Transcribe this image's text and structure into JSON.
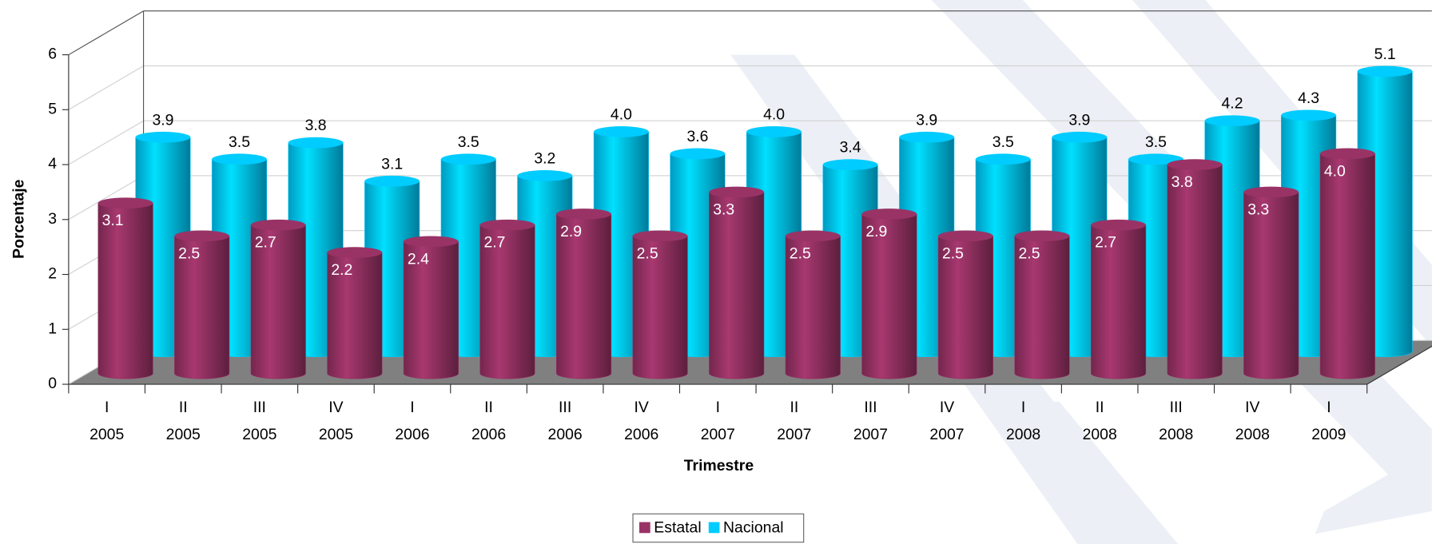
{
  "chart_data": {
    "type": "bar3d",
    "x_label": "Trimestre",
    "y_label": "Porcentaje",
    "categories": [
      [
        "I",
        "2005"
      ],
      [
        "II",
        "2005"
      ],
      [
        "III",
        "2005"
      ],
      [
        "IV",
        "2005"
      ],
      [
        "I",
        "2006"
      ],
      [
        "II",
        "2006"
      ],
      [
        "III",
        "2006"
      ],
      [
        "IV",
        "2006"
      ],
      [
        "I",
        "2007"
      ],
      [
        "II",
        "2007"
      ],
      [
        "III",
        "2007"
      ],
      [
        "IV",
        "2007"
      ],
      [
        "I",
        "2008"
      ],
      [
        "II",
        "2008"
      ],
      [
        "III",
        "2008"
      ],
      [
        "IV",
        "2008"
      ],
      [
        "I",
        "2009"
      ]
    ],
    "series": [
      {
        "name": "Estatal",
        "color": "#993366",
        "values": [
          3.1,
          2.5,
          2.7,
          2.2,
          2.4,
          2.7,
          2.9,
          2.5,
          3.3,
          2.5,
          2.9,
          2.5,
          2.5,
          2.7,
          3.8,
          3.3,
          4.0
        ],
        "value_labels": [
          "3.1",
          "2.5",
          "2.7",
          "2.2",
          "2.4",
          "2.7",
          "2.9",
          "2.5",
          "3.3",
          "2.5",
          "2.9",
          "2.5",
          "2.5",
          "2.7",
          "3.8",
          "3.3",
          "4.0"
        ]
      },
      {
        "name": "Nacional",
        "color": "#00ccff",
        "values": [
          3.9,
          3.5,
          3.8,
          3.1,
          3.5,
          3.2,
          4.0,
          3.6,
          4.0,
          3.4,
          3.9,
          3.5,
          3.9,
          3.5,
          4.2,
          4.3,
          5.1
        ],
        "value_labels": [
          "3.9",
          "3.5",
          "3.8",
          "3.1",
          "3.5",
          "3.2",
          "4.0",
          "3.6",
          "4.0",
          "3.4",
          "3.9",
          "3.5",
          "3.9",
          "3.5",
          "4.2",
          "4.3",
          "5.1"
        ]
      }
    ],
    "ylim": [
      0,
      6
    ],
    "yticks": [
      0,
      1,
      2,
      3,
      4,
      5,
      6
    ],
    "grid": true,
    "legend": "bottom"
  }
}
